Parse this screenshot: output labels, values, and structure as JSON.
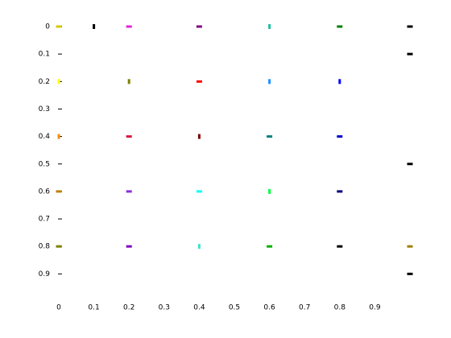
{
  "chart_data": {
    "type": "scatter",
    "x": [
      0,
      0.1,
      0.2,
      0.4,
      0.6,
      0.8,
      1,
      1,
      0,
      0.2,
      0.4,
      0.6,
      0.8,
      0,
      0.2,
      0.4,
      0.6,
      0.8,
      1,
      0,
      0.2,
      0.4,
      0.6,
      0.8,
      0,
      0.2,
      0.4,
      0.6,
      0.8,
      1,
      1
    ],
    "y": [
      0,
      0,
      0,
      0,
      0,
      0,
      0,
      0.1,
      0.2,
      0.2,
      0.2,
      0.2,
      0.2,
      0.4,
      0.4,
      0.4,
      0.4,
      0.4,
      0.5,
      0.6,
      0.6,
      0.6,
      0.6,
      0.6,
      0.8,
      0.8,
      0.8,
      0.8,
      0.8,
      0.8,
      0.9
    ],
    "colors": [
      "#d4c800",
      "#000000",
      "#e020e0",
      "#800080",
      "#20c0a0",
      "#008000",
      "#000000",
      "#000000",
      "#ffff00",
      "#808000",
      "#ff0000",
      "#1e90ff",
      "#0000ff",
      "#ff8c00",
      "#dc143c",
      "#800000",
      "#008080",
      "#0000cd",
      "#000000",
      "#c08000",
      "#8a2be2",
      "#00ffff",
      "#00ff40",
      "#000080",
      "#808000",
      "#8000c0",
      "#40e0d0",
      "#00b000",
      "#000000",
      "#a08000",
      "#000000"
    ],
    "markers": [
      "h",
      "v",
      "h",
      "h",
      "v",
      "h",
      "h",
      "h",
      "v",
      "v",
      "h",
      "v",
      "v",
      "v",
      "h",
      "v",
      "h",
      "h",
      "h",
      "h",
      "h",
      "h",
      "v",
      "h",
      "h",
      "h",
      "v",
      "h",
      "h",
      "h",
      "h"
    ],
    "xlim": [
      0,
      1
    ],
    "ylim": [
      0,
      1
    ],
    "y_inverted": true,
    "xticks": [
      0,
      0.1,
      0.2,
      0.3,
      0.4,
      0.5,
      0.6,
      0.7,
      0.8,
      0.9
    ],
    "yticks": [
      0,
      0.1,
      0.2,
      0.3,
      0.4,
      0.5,
      0.6,
      0.7,
      0.8,
      0.9
    ]
  }
}
